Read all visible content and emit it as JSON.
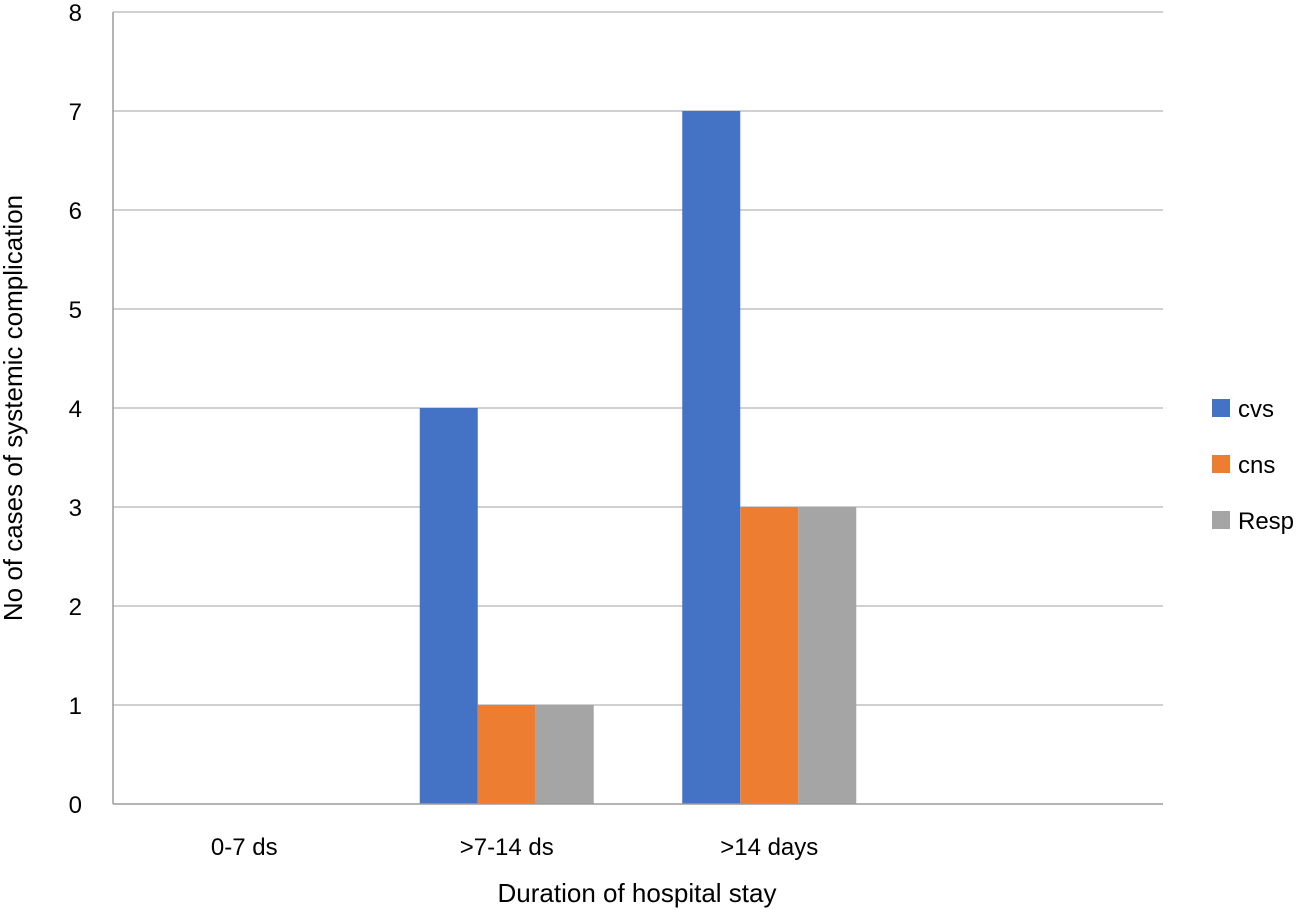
{
  "chart_data": {
    "type": "bar",
    "title": "",
    "xlabel": "Duration of hospital stay",
    "ylabel": "No of cases of systemic complication",
    "categories": [
      "0-7 ds",
      ">7-14 ds",
      ">14 days",
      ""
    ],
    "series": [
      {
        "name": "cvs",
        "color": "#4472C4",
        "values": [
          0,
          4,
          7,
          0
        ]
      },
      {
        "name": "cns",
        "color": "#ED7D31",
        "values": [
          0,
          1,
          3,
          0
        ]
      },
      {
        "name": "Resp",
        "color": "#A5A5A5",
        "values": [
          0,
          1,
          3,
          0
        ]
      }
    ],
    "ylim": [
      0,
      8
    ],
    "yticks": [
      0,
      1,
      2,
      3,
      4,
      5,
      6,
      7,
      8
    ],
    "grid": true,
    "legend_position": "right"
  }
}
